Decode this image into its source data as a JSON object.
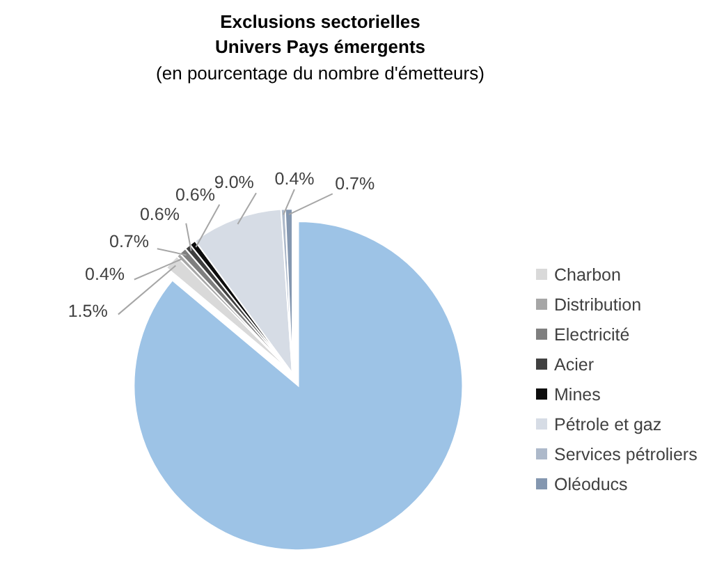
{
  "chart_data": {
    "type": "pie",
    "title": "Exclusions sectorielles",
    "subtitle": "Univers Pays émergents",
    "annotations": [
      "(en pourcentage du nombre d'émetteurs)"
    ],
    "categories": [
      "Charbon",
      "Distribution",
      "Electricité",
      "Acier",
      "Mines",
      "Pétrole et gaz",
      "Services pétroliers",
      "Oléoducs",
      null
    ],
    "values": [
      1.5,
      0.4,
      0.7,
      0.6,
      0.6,
      9.0,
      0.4,
      0.7,
      86.1
    ],
    "colors": [
      "#d9d9d9",
      "#a6a6a6",
      "#7f7f7f",
      "#404040",
      "#0d0d0d",
      "#d6dce5",
      "#adb9ca",
      "#8497b0",
      "#9dc3e6"
    ],
    "value_labels": [
      "1.5%",
      "0.4%",
      "0.7%",
      "0.6%",
      "0.6%",
      "9.0%",
      "0.4%",
      "0.7%",
      null
    ],
    "legend": "right"
  }
}
